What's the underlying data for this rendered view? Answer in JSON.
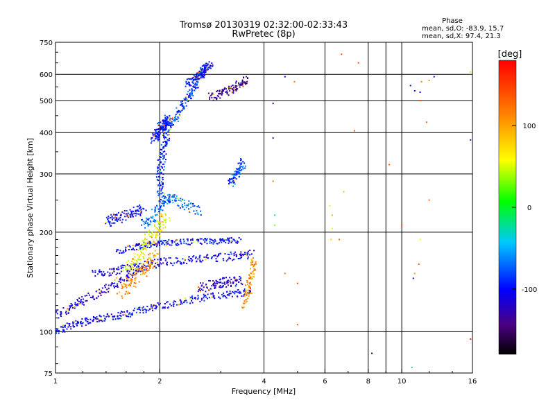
{
  "title": {
    "line1": "Tromsø 20130319 02:32:00-02:33:43",
    "line2": "RwPretec (8p)"
  },
  "phase_note": {
    "heading": "Phase",
    "line_o": "mean, sd,O: -83.9, 15.7",
    "line_x": "mean, sd,X:  97.4, 21.3"
  },
  "colorbar": {
    "unit": "[deg]",
    "ticks": [
      {
        "value": 100,
        "label": "100"
      },
      {
        "value": 0,
        "label": "0"
      },
      {
        "value": -100,
        "label": "-100"
      }
    ],
    "range": [
      -180,
      180
    ]
  },
  "chart_data": {
    "type": "scatter",
    "title": "Tromsø 20130319 02:32:00-02:33:43",
    "subtitle": "RwPretec (8p)",
    "xlabel": "Frequency [MHz]",
    "ylabel": "Stationary phase Virtual Height [km]",
    "xscale": "log",
    "yscale": "log",
    "xlim": [
      1,
      16
    ],
    "ylim": [
      75,
      750
    ],
    "xticks": [
      {
        "value": 1,
        "label": "1"
      },
      {
        "value": 2,
        "label": "2"
      },
      {
        "value": 4,
        "label": "4"
      },
      {
        "value": 6,
        "label": "6"
      },
      {
        "value": 8,
        "label": "8"
      },
      {
        "value": 10,
        "label": "10"
      },
      {
        "value": 16,
        "label": "16"
      }
    ],
    "xgrid": [
      2,
      4,
      6,
      8,
      9,
      10
    ],
    "yticks": [
      {
        "value": 75,
        "label": "75"
      },
      {
        "value": 100,
        "label": "100"
      },
      {
        "value": 200,
        "label": "200"
      },
      {
        "value": 300,
        "label": "300"
      },
      {
        "value": 400,
        "label": "400"
      },
      {
        "value": 500,
        "label": "500"
      },
      {
        "value": 600,
        "label": "600"
      },
      {
        "value": 750,
        "label": "750"
      }
    ],
    "ygrid": [
      100,
      200,
      300,
      400,
      500,
      600
    ],
    "color_by": "phase [deg]",
    "traces": [
      {
        "f": [
          1.0,
          1.1,
          1.2,
          1.3,
          1.45,
          1.6,
          1.8,
          2.0,
          2.3,
          2.6,
          3.0,
          3.4,
          3.7
        ],
        "h": [
          100,
          104,
          107,
          109,
          111,
          113,
          117,
          120,
          123,
          126,
          129,
          131,
          133
        ],
        "phase": -105,
        "spread": 0.035
      },
      {
        "f": [
          1.0,
          1.1,
          1.2,
          1.35,
          1.5,
          1.65,
          1.8
        ],
        "h": [
          112,
          118,
          125,
          132,
          140,
          148,
          158
        ],
        "phase": -115,
        "spread": 0.04
      },
      {
        "f": [
          1.3,
          1.45,
          1.6,
          1.8,
          2.0,
          2.3,
          2.6,
          3.0,
          3.4,
          3.7
        ],
        "h": [
          150,
          152,
          155,
          158,
          162,
          164,
          166,
          168,
          170,
          172
        ],
        "phase": -110,
        "spread": 0.04
      },
      {
        "f": [
          1.5,
          1.7,
          1.85,
          2.0,
          2.2,
          2.5,
          2.8,
          3.1,
          3.4
        ],
        "h": [
          175,
          180,
          183,
          185,
          186,
          187,
          188,
          188,
          189
        ],
        "phase": -100,
        "spread": 0.03
      },
      {
        "f": [
          1.6,
          1.7,
          1.8,
          1.9,
          2.0,
          2.1
        ],
        "h": [
          150,
          165,
          180,
          195,
          210,
          225
        ],
        "phase": 60,
        "spread": 0.06
      },
      {
        "f": [
          1.55,
          1.65,
          1.75,
          1.85,
          1.95
        ],
        "h": [
          130,
          140,
          150,
          160,
          170
        ],
        "phase": 110,
        "spread": 0.06
      },
      {
        "f": [
          1.8,
          1.9,
          2.0,
          2.1,
          2.2,
          2.4,
          2.6
        ],
        "h": [
          210,
          220,
          240,
          255,
          250,
          240,
          230
        ],
        "phase": -70,
        "spread": 0.05
      },
      {
        "f": [
          1.4,
          1.5,
          1.6,
          1.7,
          1.8
        ],
        "h": [
          215,
          220,
          225,
          230,
          235
        ],
        "phase": -105,
        "spread": 0.05
      },
      {
        "f": [
          2.0,
          2.0,
          2.02,
          2.05,
          2.08,
          2.1,
          2.12
        ],
        "h": [
          260,
          290,
          320,
          350,
          380,
          410,
          440
        ],
        "phase": -90,
        "spread": 0.045
      },
      {
        "f": [
          1.93,
          1.96,
          2.0,
          2.04,
          2.08,
          2.12
        ],
        "h": [
          380,
          395,
          410,
          420,
          430,
          440
        ],
        "phase": -95,
        "spread": 0.05
      },
      {
        "f": [
          2.15,
          2.25,
          2.35,
          2.45,
          2.55,
          2.65,
          2.72
        ],
        "h": [
          420,
          455,
          490,
          525,
          560,
          600,
          630
        ],
        "phase": -85,
        "spread": 0.04
      },
      {
        "f": [
          2.4,
          2.5,
          2.6,
          2.7,
          2.8
        ],
        "h": [
          560,
          580,
          600,
          620,
          640
        ],
        "phase": -100,
        "spread": 0.04
      },
      {
        "f": [
          2.8,
          3.0,
          3.2,
          3.4,
          3.6
        ],
        "h": [
          510,
          525,
          540,
          560,
          580
        ],
        "phase": -140,
        "spread": 0.04
      },
      {
        "f": [
          3.2,
          3.3,
          3.4,
          3.5
        ],
        "h": [
          280,
          295,
          310,
          325
        ],
        "phase": -80,
        "spread": 0.04
      },
      {
        "f": [
          3.5,
          3.6,
          3.7,
          3.75
        ],
        "h": [
          120,
          135,
          150,
          165
        ],
        "phase": 110,
        "spread": 0.04
      },
      {
        "f": [
          2.6,
          2.8,
          3.0,
          3.2,
          3.4
        ],
        "h": [
          135,
          138,
          140,
          142,
          144
        ],
        "phase": -120,
        "spread": 0.05
      }
    ],
    "sparse_points": [
      {
        "f": 4.25,
        "h": 490,
        "phase": -140
      },
      {
        "f": 4.25,
        "h": 385,
        "phase": -120
      },
      {
        "f": 4.25,
        "h": 285,
        "phase": 120
      },
      {
        "f": 4.3,
        "h": 225,
        "phase": -10
      },
      {
        "f": 4.3,
        "h": 210,
        "phase": 30
      },
      {
        "f": 4.6,
        "h": 590,
        "phase": -100
      },
      {
        "f": 4.9,
        "h": 570,
        "phase": 120
      },
      {
        "f": 4.6,
        "h": 150,
        "phase": 120
      },
      {
        "f": 5.0,
        "h": 105,
        "phase": 140
      },
      {
        "f": 5.0,
        "h": 140,
        "phase": 150
      },
      {
        "f": 6.2,
        "h": 240,
        "phase": 60
      },
      {
        "f": 6.3,
        "h": 225,
        "phase": 90
      },
      {
        "f": 6.6,
        "h": 190,
        "phase": 130
      },
      {
        "f": 6.25,
        "h": 190,
        "phase": 80
      },
      {
        "f": 6.3,
        "h": 205,
        "phase": 60
      },
      {
        "f": 6.7,
        "h": 690,
        "phase": 140
      },
      {
        "f": 7.5,
        "h": 650,
        "phase": 140
      },
      {
        "f": 7.3,
        "h": 405,
        "phase": 130
      },
      {
        "f": 6.8,
        "h": 265,
        "phase": 90
      },
      {
        "f": 9.2,
        "h": 320,
        "phase": 140
      },
      {
        "f": 8.2,
        "h": 86,
        "phase": -170
      },
      {
        "f": 10.0,
        "h": 210,
        "phase": 150
      },
      {
        "f": 10.6,
        "h": 555,
        "phase": -100
      },
      {
        "f": 10.9,
        "h": 535,
        "phase": -120
      },
      {
        "f": 11.3,
        "h": 530,
        "phase": -100
      },
      {
        "f": 11.4,
        "h": 570,
        "phase": 120
      },
      {
        "f": 12.0,
        "h": 575,
        "phase": 110
      },
      {
        "f": 12.4,
        "h": 590,
        "phase": -120
      },
      {
        "f": 11.3,
        "h": 500,
        "phase": 140
      },
      {
        "f": 11.8,
        "h": 430,
        "phase": 130
      },
      {
        "f": 11.3,
        "h": 190,
        "phase": 60
      },
      {
        "f": 11.2,
        "h": 160,
        "phase": 130
      },
      {
        "f": 10.9,
        "h": 150,
        "phase": 100
      },
      {
        "f": 10.8,
        "h": 145,
        "phase": -120
      },
      {
        "f": 12.0,
        "h": 250,
        "phase": 130
      },
      {
        "f": 10.7,
        "h": 78,
        "phase": -20
      },
      {
        "f": 15.8,
        "h": 95,
        "phase": 170
      },
      {
        "f": 15.8,
        "h": 380,
        "phase": -130
      },
      {
        "f": 15.8,
        "h": 610,
        "phase": 40
      }
    ]
  }
}
